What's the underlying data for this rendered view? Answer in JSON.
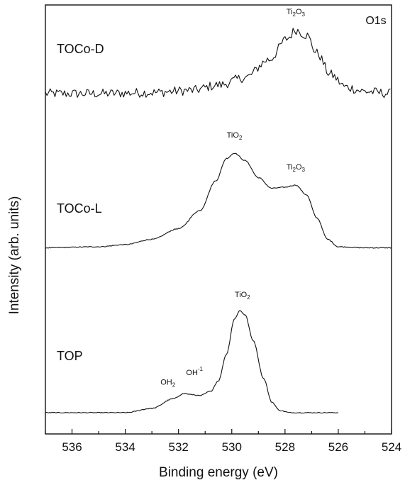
{
  "chart_data": {
    "type": "line",
    "title": "",
    "panel_label": "O1s",
    "xlabel": "Binding energy (eV)",
    "ylabel": "Intensity (arb. units)",
    "xlim": [
      537,
      524
    ],
    "x_reversed": true,
    "xticks": [
      536,
      534,
      532,
      530,
      528,
      526,
      524
    ],
    "y_ticks_shown": false,
    "grid": false,
    "series": [
      {
        "name": "TOCo-D",
        "x_range": [
          537,
          524
        ],
        "offset": 3.0,
        "noisy": true,
        "points": [
          [
            537,
            0.0
          ],
          [
            535,
            0.0
          ],
          [
            533,
            0.01
          ],
          [
            531.5,
            0.03
          ],
          [
            530.5,
            0.08
          ],
          [
            529.5,
            0.15
          ],
          [
            528.6,
            0.32
          ],
          [
            527.9,
            0.52
          ],
          [
            527.6,
            0.6
          ],
          [
            527.2,
            0.55
          ],
          [
            526.8,
            0.38
          ],
          [
            526.3,
            0.18
          ],
          [
            525.7,
            0.06
          ],
          [
            525,
            0.02
          ],
          [
            524,
            0.0
          ]
        ],
        "annotations": [
          {
            "text": "Ti",
            "sub": "2",
            "text2": "O",
            "sub2": "3",
            "x": 527.6
          }
        ]
      },
      {
        "name": "TOCo-L",
        "x_range": [
          537,
          524
        ],
        "offset": 1.55,
        "noisy": false,
        "points": [
          [
            537,
            0.0
          ],
          [
            535,
            0.01
          ],
          [
            534,
            0.03
          ],
          [
            533,
            0.08
          ],
          [
            532,
            0.18
          ],
          [
            531.2,
            0.35
          ],
          [
            530.6,
            0.63
          ],
          [
            530.2,
            0.84
          ],
          [
            529.9,
            0.89
          ],
          [
            529.5,
            0.82
          ],
          [
            529.0,
            0.66
          ],
          [
            528.5,
            0.56
          ],
          [
            528.0,
            0.57
          ],
          [
            527.6,
            0.59
          ],
          [
            527.2,
            0.5
          ],
          [
            526.8,
            0.28
          ],
          [
            526.4,
            0.08
          ],
          [
            526.0,
            0.01
          ],
          [
            525,
            0.0
          ],
          [
            524,
            0.0
          ]
        ],
        "annotations": [
          {
            "text": "TiO",
            "sub": "2",
            "x": 529.9
          },
          {
            "text": "Ti",
            "sub": "2",
            "text2": "O",
            "sub2": "3",
            "x": 527.6
          }
        ]
      },
      {
        "name": "TOP",
        "x_range": [
          537,
          526
        ],
        "offset": 0.0,
        "noisy": false,
        "points": [
          [
            537,
            0.0
          ],
          [
            534,
            0.0
          ],
          [
            533,
            0.04
          ],
          [
            532.2,
            0.13
          ],
          [
            531.8,
            0.18
          ],
          [
            531.5,
            0.17
          ],
          [
            531.2,
            0.16
          ],
          [
            530.8,
            0.2
          ],
          [
            530.5,
            0.3
          ],
          [
            530.2,
            0.55
          ],
          [
            529.9,
            0.88
          ],
          [
            529.7,
            0.96
          ],
          [
            529.5,
            0.92
          ],
          [
            529.2,
            0.68
          ],
          [
            528.8,
            0.32
          ],
          [
            528.5,
            0.1
          ],
          [
            528.2,
            0.02
          ],
          [
            527.8,
            0.0
          ],
          [
            526,
            0.0
          ]
        ],
        "annotations": [
          {
            "text": "OH",
            "sub": "2",
            "x": 532.4
          },
          {
            "text": "OH",
            "sup": "-1",
            "x": 531.4
          },
          {
            "text": "TiO",
            "sub": "2",
            "x": 529.6
          }
        ]
      }
    ]
  }
}
